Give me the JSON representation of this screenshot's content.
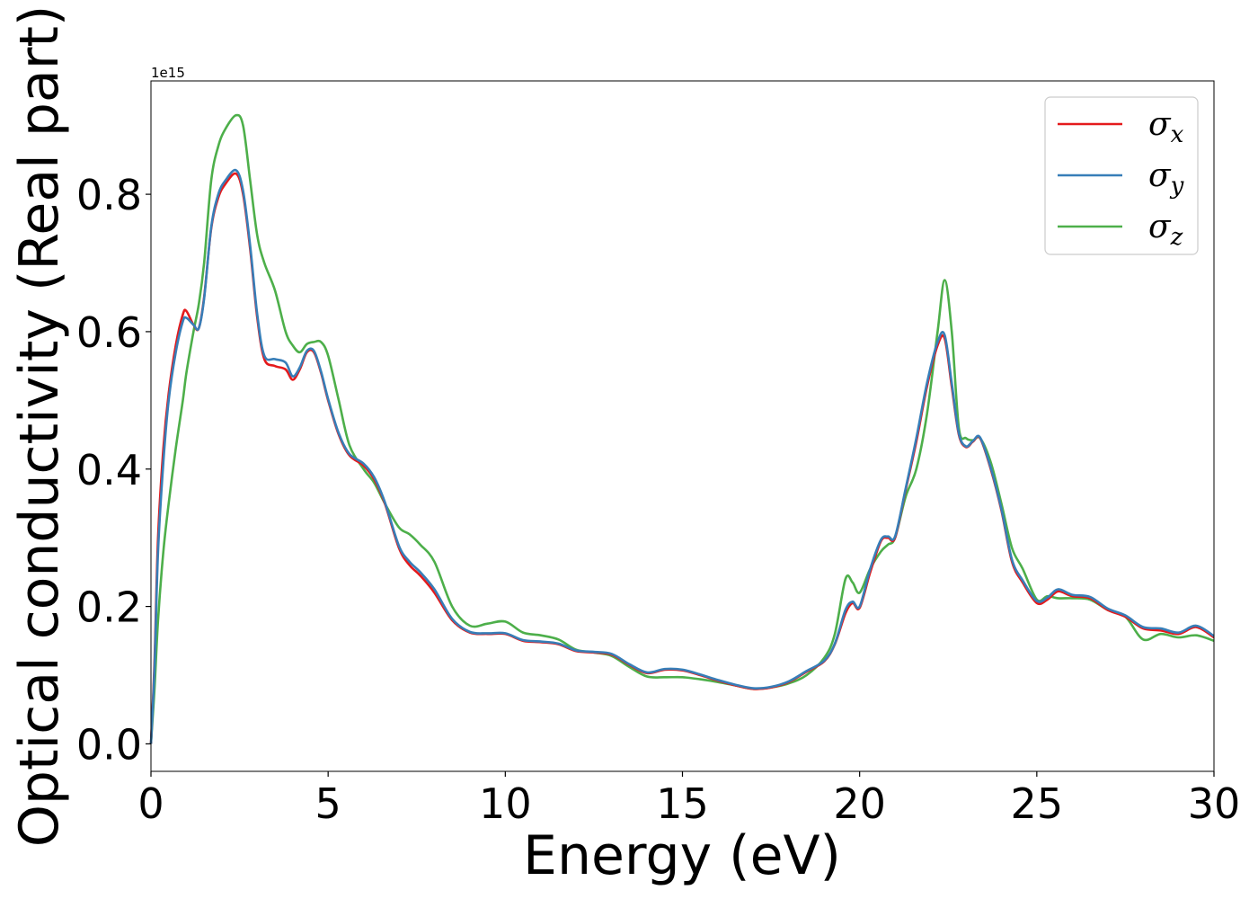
{
  "chart_data": {
    "type": "line",
    "xlabel": "Energy (eV)",
    "ylabel": "Optical conductivity (Real part)",
    "y_offset_text": "1e15",
    "xlim": [
      0,
      30
    ],
    "ylim": [
      -0.04,
      0.965
    ],
    "x_ticks": [
      0,
      5,
      10,
      15,
      20,
      25,
      30
    ],
    "x_tick_labels": [
      "0",
      "5",
      "10",
      "15",
      "20",
      "25",
      "30"
    ],
    "y_ticks": [
      0.0,
      0.2,
      0.4,
      0.6,
      0.8
    ],
    "y_tick_labels": [
      "0.0",
      "0.2",
      "0.4",
      "0.6",
      "0.8"
    ],
    "grid": false,
    "legend_position": "top-right",
    "series": [
      {
        "name": "σx",
        "legend_base": "σ",
        "legend_sub": "x",
        "color": "#e41a1c",
        "x": [
          0,
          0.1,
          0.2,
          0.35,
          0.5,
          0.7,
          0.9,
          1.0,
          1.2,
          1.35,
          1.5,
          1.7,
          1.9,
          2.1,
          2.4,
          2.6,
          2.8,
          3.0,
          3.2,
          3.5,
          3.8,
          4.0,
          4.2,
          4.4,
          4.6,
          4.8,
          5.0,
          5.3,
          5.6,
          6.0,
          6.3,
          6.6,
          7.0,
          7.3,
          7.6,
          8.0,
          8.5,
          9.0,
          9.5,
          10.0,
          10.5,
          11.0,
          11.5,
          12.0,
          12.5,
          13.0,
          13.5,
          14.0,
          14.5,
          15.0,
          15.5,
          16.0,
          16.5,
          17.0,
          17.5,
          18.0,
          18.5,
          19.0,
          19.3,
          19.6,
          19.8,
          20.0,
          20.3,
          20.6,
          20.8,
          21.0,
          21.3,
          21.6,
          21.9,
          22.2,
          22.4,
          22.6,
          22.8,
          23.0,
          23.2,
          23.4,
          23.7,
          24.0,
          24.3,
          24.6,
          25.0,
          25.3,
          25.6,
          26.0,
          26.5,
          27.0,
          27.5,
          28.0,
          28.5,
          29.0,
          29.5,
          30.0
        ],
        "y": [
          0.0,
          0.12,
          0.3,
          0.43,
          0.51,
          0.58,
          0.625,
          0.63,
          0.61,
          0.605,
          0.65,
          0.75,
          0.795,
          0.815,
          0.83,
          0.8,
          0.72,
          0.62,
          0.56,
          0.55,
          0.545,
          0.53,
          0.545,
          0.57,
          0.57,
          0.54,
          0.5,
          0.45,
          0.42,
          0.405,
          0.385,
          0.35,
          0.285,
          0.26,
          0.245,
          0.22,
          0.18,
          0.162,
          0.16,
          0.16,
          0.15,
          0.148,
          0.145,
          0.135,
          0.133,
          0.13,
          0.115,
          0.103,
          0.108,
          0.107,
          0.1,
          0.092,
          0.085,
          0.08,
          0.082,
          0.09,
          0.105,
          0.12,
          0.145,
          0.19,
          0.205,
          0.198,
          0.25,
          0.295,
          0.3,
          0.3,
          0.37,
          0.44,
          0.52,
          0.58,
          0.59,
          0.52,
          0.45,
          0.432,
          0.44,
          0.445,
          0.4,
          0.34,
          0.265,
          0.235,
          0.205,
          0.21,
          0.222,
          0.215,
          0.212,
          0.195,
          0.185,
          0.168,
          0.165,
          0.16,
          0.17,
          0.155
        ]
      },
      {
        "name": "σy",
        "legend_base": "σ",
        "legend_sub": "y",
        "color": "#377eb8",
        "x": [
          0,
          0.1,
          0.2,
          0.35,
          0.5,
          0.7,
          0.9,
          1.0,
          1.2,
          1.35,
          1.5,
          1.7,
          1.9,
          2.1,
          2.4,
          2.6,
          2.8,
          3.0,
          3.2,
          3.5,
          3.8,
          4.0,
          4.2,
          4.4,
          4.6,
          4.8,
          5.0,
          5.3,
          5.6,
          6.0,
          6.3,
          6.6,
          7.0,
          7.3,
          7.6,
          8.0,
          8.5,
          9.0,
          9.5,
          10.0,
          10.5,
          11.0,
          11.5,
          12.0,
          12.5,
          13.0,
          13.5,
          14.0,
          14.5,
          15.0,
          15.5,
          16.0,
          16.5,
          17.0,
          17.5,
          18.0,
          18.5,
          19.0,
          19.3,
          19.6,
          19.8,
          20.0,
          20.3,
          20.6,
          20.8,
          21.0,
          21.3,
          21.6,
          21.9,
          22.2,
          22.4,
          22.6,
          22.8,
          23.0,
          23.2,
          23.4,
          23.7,
          24.0,
          24.3,
          24.6,
          25.0,
          25.3,
          25.6,
          26.0,
          26.5,
          27.0,
          27.5,
          28.0,
          28.5,
          29.0,
          29.5,
          30.0
        ],
        "y": [
          0.0,
          0.11,
          0.28,
          0.41,
          0.5,
          0.57,
          0.615,
          0.62,
          0.61,
          0.605,
          0.648,
          0.752,
          0.8,
          0.82,
          0.835,
          0.805,
          0.725,
          0.625,
          0.565,
          0.56,
          0.555,
          0.535,
          0.548,
          0.572,
          0.572,
          0.542,
          0.502,
          0.452,
          0.422,
          0.408,
          0.388,
          0.352,
          0.288,
          0.265,
          0.25,
          0.225,
          0.182,
          0.163,
          0.161,
          0.161,
          0.151,
          0.149,
          0.146,
          0.136,
          0.134,
          0.131,
          0.116,
          0.104,
          0.109,
          0.108,
          0.101,
          0.093,
          0.086,
          0.081,
          0.083,
          0.091,
          0.106,
          0.121,
          0.146,
          0.195,
          0.207,
          0.2,
          0.255,
          0.297,
          0.302,
          0.302,
          0.372,
          0.445,
          0.525,
          0.585,
          0.595,
          0.525,
          0.452,
          0.433,
          0.441,
          0.446,
          0.402,
          0.342,
          0.268,
          0.238,
          0.208,
          0.213,
          0.225,
          0.217,
          0.214,
          0.197,
          0.187,
          0.17,
          0.168,
          0.162,
          0.172,
          0.157
        ]
      },
      {
        "name": "σz",
        "legend_base": "σ",
        "legend_sub": "z",
        "color": "#4daf4a",
        "x": [
          0,
          0.1,
          0.2,
          0.35,
          0.5,
          0.7,
          0.9,
          1.0,
          1.2,
          1.35,
          1.5,
          1.7,
          1.9,
          2.1,
          2.4,
          2.6,
          2.8,
          3.0,
          3.2,
          3.5,
          3.8,
          4.0,
          4.2,
          4.4,
          4.6,
          4.8,
          5.0,
          5.3,
          5.6,
          6.0,
          6.3,
          6.6,
          7.0,
          7.3,
          7.6,
          8.0,
          8.5,
          9.0,
          9.5,
          10.0,
          10.5,
          11.0,
          11.5,
          12.0,
          12.5,
          13.0,
          13.5,
          14.0,
          14.5,
          15.0,
          15.5,
          16.0,
          16.5,
          17.0,
          17.5,
          18.0,
          18.5,
          19.0,
          19.3,
          19.6,
          19.8,
          20.0,
          20.3,
          20.6,
          20.8,
          21.0,
          21.3,
          21.6,
          21.9,
          22.2,
          22.4,
          22.6,
          22.8,
          23.0,
          23.2,
          23.4,
          23.7,
          24.0,
          24.3,
          24.6,
          25.0,
          25.3,
          25.6,
          26.0,
          26.5,
          27.0,
          27.5,
          28.0,
          28.5,
          29.0,
          29.5,
          30.0
        ],
        "y": [
          0.0,
          0.08,
          0.18,
          0.28,
          0.35,
          0.43,
          0.5,
          0.54,
          0.6,
          0.64,
          0.7,
          0.82,
          0.87,
          0.895,
          0.915,
          0.9,
          0.82,
          0.74,
          0.7,
          0.66,
          0.6,
          0.58,
          0.57,
          0.582,
          0.585,
          0.585,
          0.565,
          0.5,
          0.435,
          0.4,
          0.38,
          0.35,
          0.315,
          0.305,
          0.29,
          0.265,
          0.2,
          0.172,
          0.175,
          0.178,
          0.162,
          0.158,
          0.152,
          0.137,
          0.133,
          0.128,
          0.112,
          0.098,
          0.097,
          0.097,
          0.094,
          0.09,
          0.085,
          0.08,
          0.082,
          0.088,
          0.1,
          0.125,
          0.16,
          0.24,
          0.235,
          0.22,
          0.255,
          0.28,
          0.29,
          0.3,
          0.36,
          0.4,
          0.48,
          0.6,
          0.675,
          0.6,
          0.46,
          0.445,
          0.442,
          0.445,
          0.41,
          0.35,
          0.285,
          0.255,
          0.21,
          0.215,
          0.212,
          0.212,
          0.21,
          0.195,
          0.185,
          0.152,
          0.16,
          0.155,
          0.158,
          0.15
        ]
      }
    ]
  }
}
